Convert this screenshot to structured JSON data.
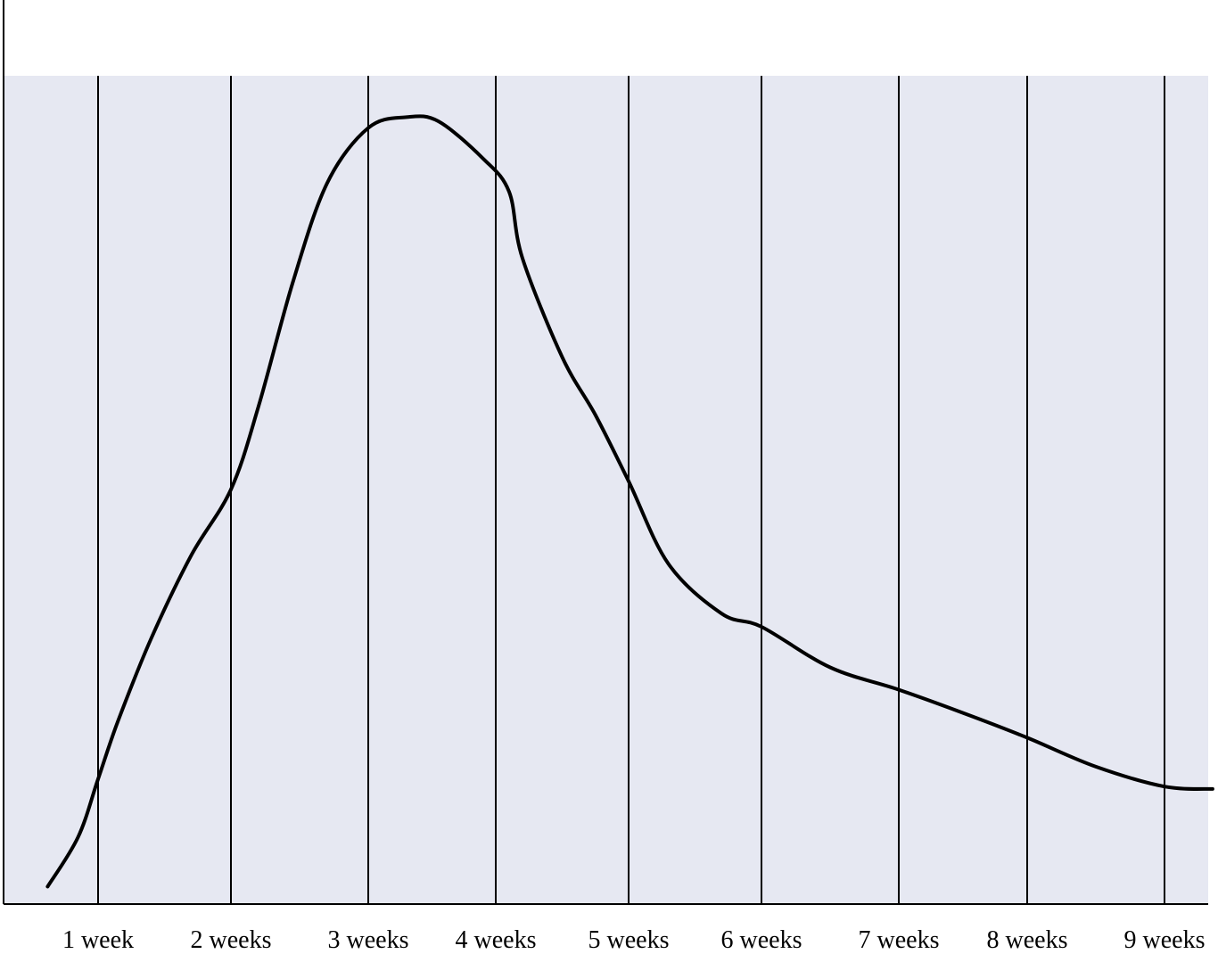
{
  "chart_data": {
    "type": "line",
    "title": "",
    "xlabel": "",
    "ylabel": "",
    "grid": "vertical",
    "background_color": "#e6e8f2",
    "line_color": "#000000",
    "categories": [
      "1 week",
      "2 weeks",
      "3 weeks",
      "4 weeks",
      "5 weeks",
      "6 weeks",
      "7 weeks",
      "8 weeks",
      "9 weeks"
    ],
    "xlim": [
      0.6,
      9.35
    ],
    "ylim": [
      0,
      100
    ],
    "series": [
      {
        "values_xy": [
          [
            0.62,
            2
          ],
          [
            0.85,
            8
          ],
          [
            1.0,
            15
          ],
          [
            1.15,
            22
          ],
          [
            1.4,
            32
          ],
          [
            1.7,
            42
          ],
          [
            2.0,
            50
          ],
          [
            2.2,
            60
          ],
          [
            2.45,
            75
          ],
          [
            2.7,
            87
          ],
          [
            3.0,
            93.7
          ],
          [
            3.3,
            95
          ],
          [
            3.55,
            94.5
          ],
          [
            3.9,
            90
          ],
          [
            4.1,
            86
          ],
          [
            4.2,
            78
          ],
          [
            4.5,
            66
          ],
          [
            4.75,
            59
          ],
          [
            5.0,
            51
          ],
          [
            5.3,
            41
          ],
          [
            5.7,
            35
          ],
          [
            6.0,
            33.4
          ],
          [
            6.5,
            28.5
          ],
          [
            7.0,
            25.8
          ],
          [
            7.5,
            23
          ],
          [
            8.0,
            20
          ],
          [
            8.5,
            16.5
          ],
          [
            9.0,
            14.1
          ],
          [
            9.35,
            13.8
          ]
        ]
      }
    ]
  }
}
